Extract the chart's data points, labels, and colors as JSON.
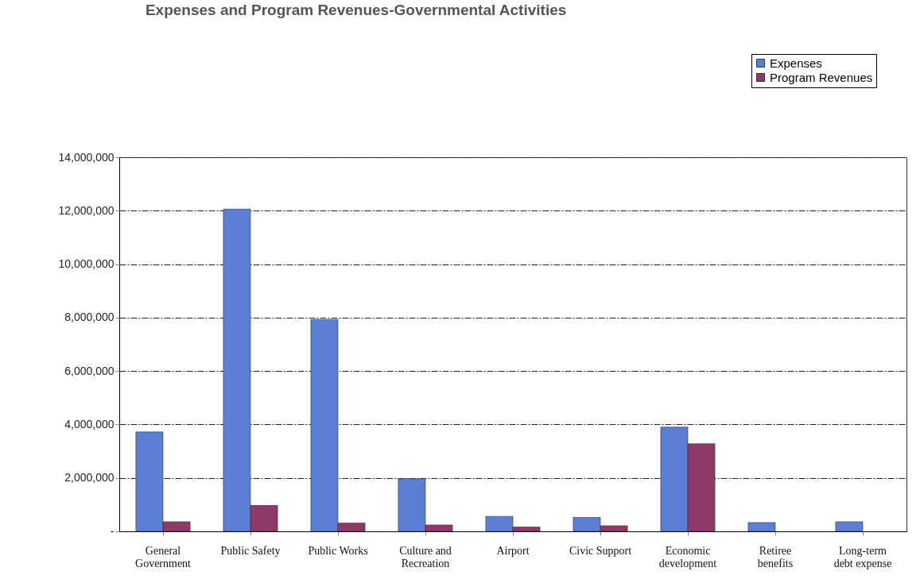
{
  "chart_data": {
    "type": "bar",
    "title": "Expenses and Program Revenues-Governmental Activities",
    "categories": [
      "General Government",
      "Public Safety",
      "Public Works",
      "Culture and Recreation",
      "Airport",
      "Civic Support",
      "Economic development",
      "Retiree benefits",
      "Long-term debt expense"
    ],
    "series": [
      {
        "name": "Expenses",
        "color": "#5b7fd4",
        "values": [
          3720000,
          12060000,
          7930000,
          1970000,
          560000,
          520000,
          3900000,
          330000,
          360000
        ]
      },
      {
        "name": "Program Revenues",
        "color": "#8e3a68",
        "values": [
          360000,
          970000,
          310000,
          240000,
          160000,
          210000,
          3280000,
          null,
          null
        ]
      }
    ],
    "ylim": [
      0,
      14000000
    ],
    "yticks": [
      {
        "value": 0,
        "label": "-"
      },
      {
        "value": 2000000,
        "label": "2,000,000"
      },
      {
        "value": 4000000,
        "label": "4,000,000"
      },
      {
        "value": 6000000,
        "label": "6,000,000"
      },
      {
        "value": 8000000,
        "label": "8,000,000"
      },
      {
        "value": 10000000,
        "label": "10,000,000"
      },
      {
        "value": 12000000,
        "label": "12,000,000"
      },
      {
        "value": 14000000,
        "label": "14,000,000"
      }
    ],
    "grid": "y",
    "legend": "top right"
  }
}
